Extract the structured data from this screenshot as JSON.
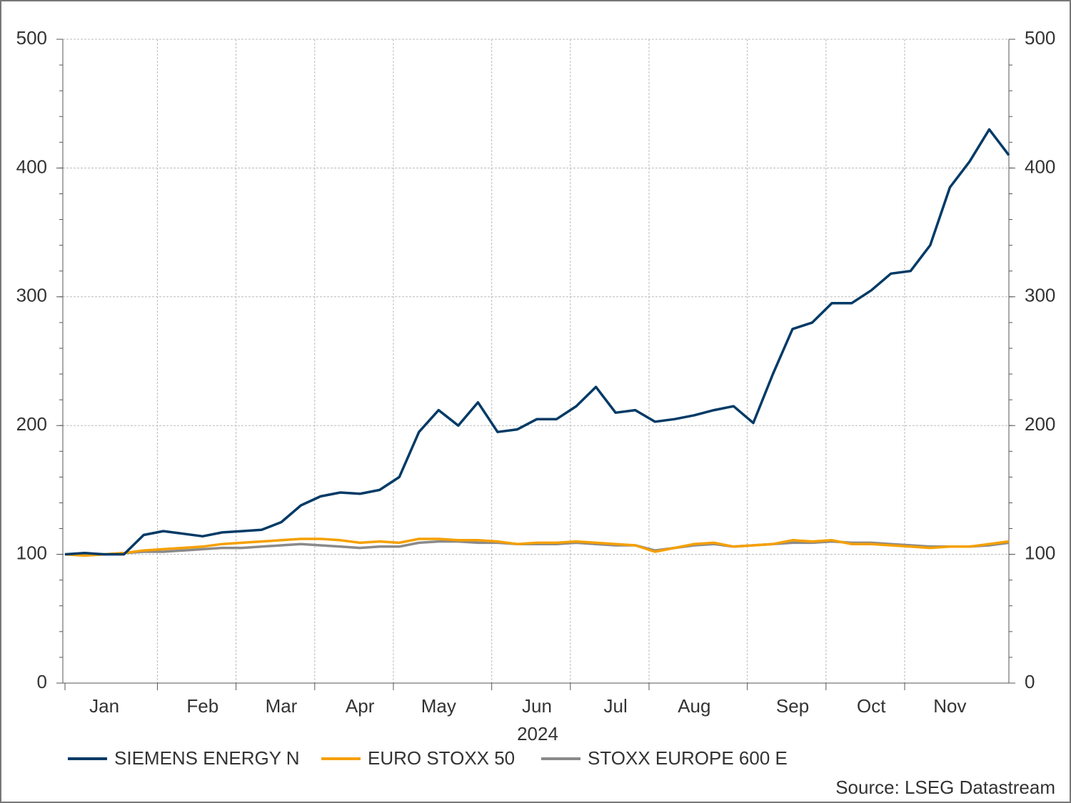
{
  "chart_data": {
    "type": "line",
    "x_label": "2024",
    "source": "Source: LSEG Datastream",
    "categories": [
      null,
      null,
      "Jan",
      null,
      null,
      null,
      null,
      "Feb",
      null,
      null,
      null,
      "Mar",
      null,
      null,
      null,
      "Apr",
      null,
      null,
      null,
      "May",
      null,
      null,
      null,
      null,
      "Jun",
      null,
      null,
      null,
      "Jul",
      null,
      null,
      null,
      "Aug",
      null,
      null,
      null,
      null,
      "Sep",
      null,
      null,
      null,
      "Oct",
      null,
      null,
      null,
      "Nov",
      null,
      null,
      null
    ],
    "series": [
      {
        "name": "SIEMENS ENERGY N",
        "color": "#003a66",
        "values": [
          100,
          101,
          100,
          100,
          115,
          118,
          116,
          114,
          117,
          118,
          119,
          125,
          138,
          145,
          148,
          147,
          150,
          160,
          195,
          212,
          200,
          218,
          195,
          197,
          205,
          205,
          215,
          230,
          210,
          212,
          203,
          205,
          208,
          212,
          215,
          202,
          240,
          275,
          280,
          295,
          295,
          305,
          318,
          320,
          340,
          385,
          405,
          430,
          410
        ]
      },
      {
        "name": "EURO STOXX 50",
        "color": "#f5a000",
        "values": [
          100,
          99,
          100,
          101,
          103,
          104,
          105,
          106,
          108,
          109,
          110,
          111,
          112,
          112,
          111,
          109,
          110,
          109,
          112,
          112,
          111,
          111,
          110,
          108,
          109,
          109,
          110,
          109,
          108,
          107,
          102,
          105,
          108,
          109,
          106,
          107,
          108,
          111,
          110,
          111,
          108,
          108,
          107,
          106,
          105,
          106,
          106,
          108,
          110
        ]
      },
      {
        "name": "STOXX EUROPE 600 E",
        "color": "#8a8a8a",
        "values": [
          100,
          100,
          100,
          101,
          102,
          102,
          103,
          104,
          105,
          105,
          106,
          107,
          108,
          107,
          106,
          105,
          106,
          106,
          109,
          110,
          110,
          109,
          109,
          108,
          108,
          108,
          109,
          108,
          107,
          107,
          103,
          105,
          107,
          108,
          106,
          107,
          108,
          109,
          109,
          110,
          109,
          109,
          108,
          107,
          106,
          106,
          106,
          107,
          109
        ]
      }
    ],
    "ylim": [
      0,
      500
    ],
    "yticks": [
      0,
      100,
      200,
      300,
      400,
      500
    ],
    "y2lim": [
      0,
      500
    ],
    "y2ticks": [
      0,
      100,
      200,
      300,
      400,
      500
    ],
    "grid": true,
    "legend": "bottom"
  }
}
